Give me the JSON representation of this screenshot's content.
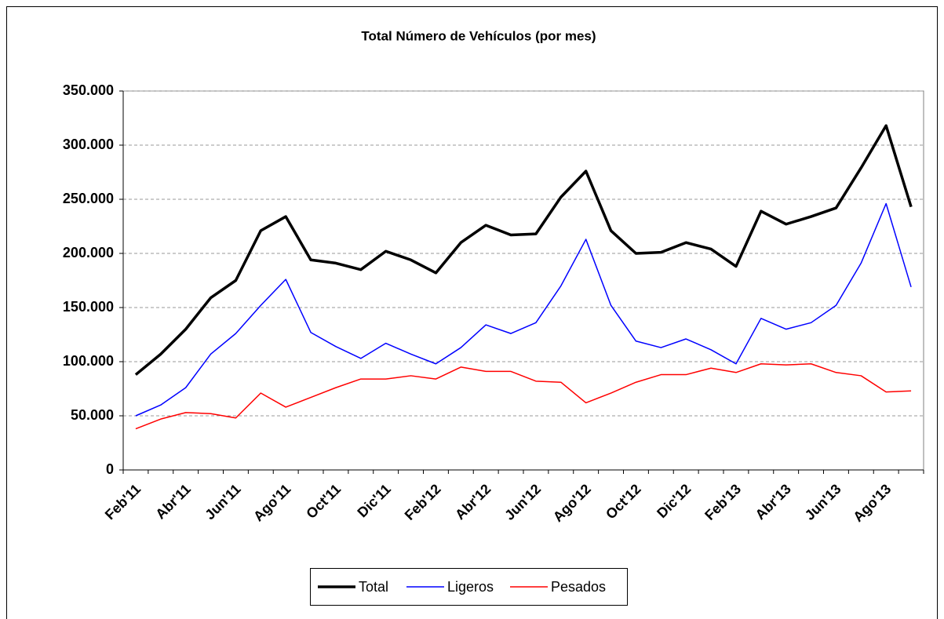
{
  "chart_data": {
    "type": "line",
    "title": "Total Número de Vehículos (por mes)",
    "categories": [
      "Feb'11",
      null,
      "Abr'11",
      null,
      "Jun'11",
      null,
      "Ago'11",
      null,
      "Oct'11",
      null,
      "Dic'11",
      null,
      "Feb'12",
      null,
      "Abr'12",
      null,
      "Jun'12",
      null,
      "Ago'12",
      null,
      "Oct'12",
      null,
      "Dic'12",
      null,
      "Feb'13",
      null,
      "Abr'13",
      null,
      "Jun'13",
      null,
      "Ago'13",
      null
    ],
    "series": [
      {
        "name": "Total",
        "color": "#000000",
        "values": [
          88000,
          107000,
          130000,
          159000,
          175000,
          221000,
          234000,
          194000,
          191000,
          185000,
          202000,
          194000,
          182000,
          210000,
          226000,
          217000,
          218000,
          252000,
          276000,
          221000,
          200000,
          201000,
          210000,
          204000,
          188000,
          239000,
          227000,
          234000,
          242000,
          279000,
          318000,
          243000
        ]
      },
      {
        "name": "Ligeros",
        "color": "#0000ff",
        "values": [
          50000,
          60000,
          76000,
          107000,
          126000,
          152000,
          176000,
          127000,
          114000,
          103000,
          117000,
          107000,
          98000,
          113000,
          134000,
          126000,
          136000,
          170000,
          213000,
          152000,
          119000,
          113000,
          121000,
          111000,
          98000,
          140000,
          130000,
          136000,
          152000,
          191000,
          246000,
          169000
        ]
      },
      {
        "name": "Pesados",
        "color": "#ff0000",
        "values": [
          38000,
          47000,
          53000,
          52000,
          48000,
          71000,
          58000,
          67000,
          76000,
          84000,
          84000,
          87000,
          84000,
          95000,
          91000,
          91000,
          82000,
          81000,
          62000,
          71000,
          81000,
          88000,
          88000,
          94000,
          90000,
          98000,
          97000,
          98000,
          90000,
          87000,
          72000,
          73000
        ]
      }
    ],
    "ylim": [
      0,
      350000
    ],
    "yticks": [
      0,
      {
        "value": 50000,
        "label": "50.000"
      },
      {
        "value": 100000,
        "label": "100.000"
      },
      {
        "value": 150000,
        "label": "150.000"
      },
      {
        "value": 200000,
        "label": "200.000"
      },
      {
        "value": 250000,
        "label": "250.000"
      },
      {
        "value": 300000,
        "label": "300.000"
      },
      {
        "value": 350000,
        "label": "350.000"
      }
    ],
    "grid": true,
    "legend": "bottom"
  }
}
